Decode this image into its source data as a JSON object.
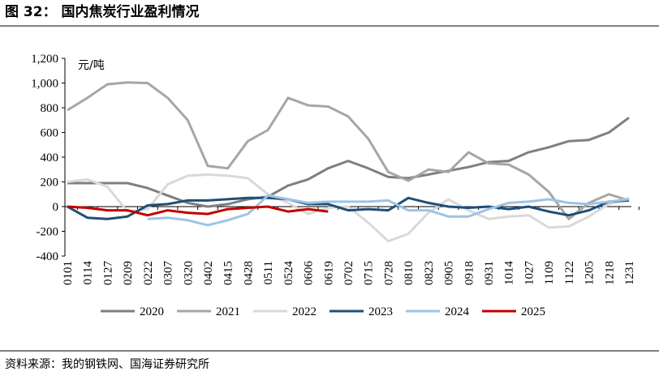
{
  "chart_data": {
    "type": "line",
    "title": "图 32：   国内焦炭行业盈利情况",
    "y_label": "元/吨",
    "source": "资料来源：我的钢铁网、国海证券研究所",
    "categories": [
      "0101",
      "0114",
      "0127",
      "0209",
      "0222",
      "0307",
      "0320",
      "0402",
      "0415",
      "0428",
      "0511",
      "0524",
      "0606",
      "0619",
      "0702",
      "0715",
      "0728",
      "0810",
      "0823",
      "0905",
      "0918",
      "0931",
      "1014",
      "1027",
      "1109",
      "1122",
      "1205",
      "1218",
      "1231"
    ],
    "ylim": [
      -400,
      1200
    ],
    "yticks": [
      -400,
      -200,
      0,
      200,
      400,
      600,
      800,
      {
        "value": 1000,
        "label": "1,000"
      },
      {
        "value": 1200,
        "label": "1,200"
      }
    ],
    "legend": "bottom",
    "series": [
      {
        "name": "2020",
        "color": "#7f7f7f",
        "values": [
          190,
          190,
          190,
          190,
          150,
          90,
          30,
          0,
          20,
          60,
          80,
          170,
          220,
          310,
          370,
          310,
          240,
          230,
          260,
          290,
          320,
          360,
          370,
          440,
          480,
          530,
          540,
          600,
          720
        ]
      },
      {
        "name": "2021",
        "color": "#a6a6a6",
        "values": [
          780,
          880,
          990,
          1005,
          1000,
          880,
          700,
          330,
          310,
          530,
          620,
          880,
          820,
          810,
          730,
          550,
          280,
          210,
          300,
          280,
          440,
          350,
          340,
          260,
          120,
          -100,
          30,
          100,
          50
        ]
      },
      {
        "name": "2022",
        "color": "#d9d9d9",
        "values": [
          200,
          220,
          160,
          -40,
          -20,
          180,
          250,
          260,
          250,
          230,
          100,
          30,
          -60,
          -10,
          0,
          -130,
          -280,
          -220,
          -50,
          60,
          -30,
          -100,
          -80,
          -70,
          -170,
          -160,
          -80,
          20,
          70
        ]
      },
      {
        "name": "2023",
        "color": "#1f4e79",
        "values": [
          0,
          -90,
          -100,
          -80,
          10,
          20,
          50,
          50,
          60,
          70,
          70,
          60,
          20,
          20,
          -30,
          -20,
          -30,
          70,
          30,
          0,
          -10,
          0,
          -20,
          0,
          -40,
          -70,
          -30,
          40,
          50
        ]
      },
      {
        "name": "2024",
        "color": "#9dc3e6",
        "values": [
          null,
          null,
          null,
          null,
          -100,
          -90,
          -110,
          -150,
          -110,
          -60,
          90,
          60,
          30,
          40,
          40,
          40,
          50,
          -30,
          -30,
          -80,
          -80,
          -20,
          30,
          40,
          60,
          30,
          20,
          40,
          60
        ]
      },
      {
        "name": "2025",
        "color": "#c00000",
        "values": [
          0,
          -10,
          -30,
          -30,
          -70,
          -30,
          -50,
          -60,
          -20,
          -10,
          0,
          -40,
          -20,
          -40,
          null,
          null,
          null,
          null,
          null,
          null,
          null,
          null,
          null,
          null,
          null,
          null,
          null,
          null,
          null
        ]
      }
    ]
  }
}
